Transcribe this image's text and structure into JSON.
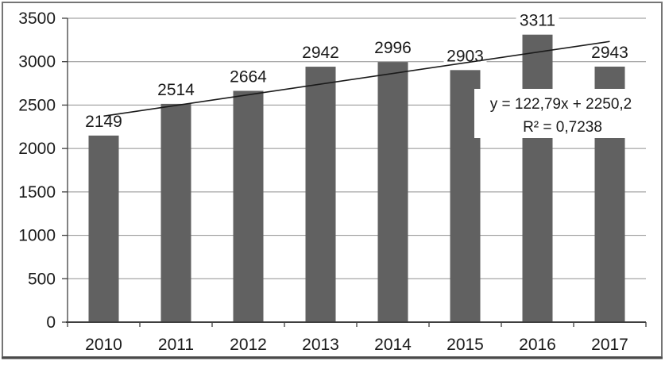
{
  "chart_data": {
    "type": "bar",
    "title": "",
    "xlabel": "",
    "ylabel": "",
    "categories": [
      "2010",
      "2011",
      "2012",
      "2013",
      "2014",
      "2015",
      "2016",
      "2017"
    ],
    "values": [
      2149,
      2514,
      2664,
      2942,
      2996,
      2903,
      3311,
      2943
    ],
    "bar_value_labels": [
      "2149",
      "2514",
      "2664",
      "2942",
      "2996",
      "2903",
      "3311",
      "2943"
    ],
    "ylim": [
      0,
      3500
    ],
    "yticks": [
      0,
      500,
      1000,
      1500,
      2000,
      2500,
      3000,
      3500
    ],
    "ytick_labels": [
      "0",
      "500",
      "1000",
      "1500",
      "2000",
      "2500",
      "3000",
      "3500"
    ],
    "grid": "horizontal",
    "legend": "none",
    "trendline": {
      "type": "linear",
      "slope": 122.79,
      "intercept": 2250.2,
      "equation_label": "y = 122,79x + 2250,2",
      "r_squared_label": "R² = 0,7238"
    },
    "colors": {
      "bar": "#616161",
      "gridline": "#8f8f8f",
      "axis": "#3f3f3f",
      "text": "#1a1a1a",
      "trendline": "#1a1a1a",
      "background": "#ffffff",
      "frame": "#757575",
      "frame_bottom": "#4a4a4a"
    }
  }
}
